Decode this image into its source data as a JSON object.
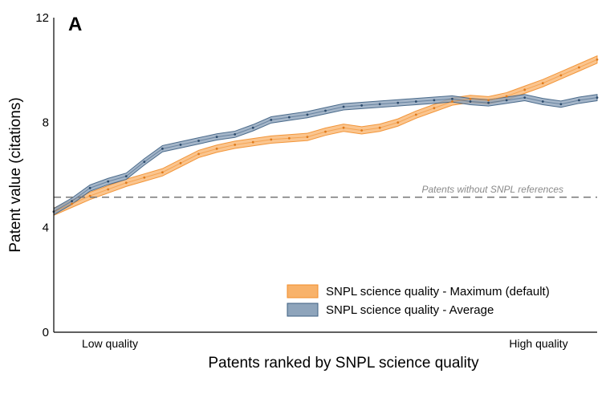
{
  "chart_data": {
    "type": "line",
    "panel_label": "A",
    "xlabel": "Patents ranked by SNPL science quality",
    "ylabel": "Patent value (citations)",
    "x_category_labels": [
      "Low quality",
      "High quality"
    ],
    "y_ticks": [
      "0",
      "4",
      "8",
      "12"
    ],
    "ylim": [
      0,
      12
    ],
    "grid": false,
    "legend_position": "bottom-right",
    "reference_line": {
      "label": "Patents without SNPL references",
      "value": 5.15,
      "color": "#777777"
    },
    "series": [
      {
        "name": "SNPL science quality - Maximum (default)",
        "color": "#f28e2b",
        "band_color": "#f8b26a",
        "band_halfwidth": 0.14,
        "x": [
          0,
          1,
          2,
          3,
          4,
          5,
          6,
          7,
          8,
          9,
          10,
          11,
          12,
          13,
          14,
          15,
          16,
          17,
          18,
          19,
          20,
          21,
          22,
          23,
          24,
          25,
          26,
          27,
          28,
          29,
          30
        ],
        "values": [
          4.6,
          4.9,
          5.2,
          5.45,
          5.7,
          5.9,
          6.1,
          6.45,
          6.8,
          7.0,
          7.15,
          7.25,
          7.35,
          7.4,
          7.45,
          7.65,
          7.8,
          7.7,
          7.8,
          8.0,
          8.3,
          8.55,
          8.8,
          8.9,
          8.85,
          9.0,
          9.25,
          9.5,
          9.8,
          10.1,
          10.4
        ]
      },
      {
        "name": "SNPL science quality - Average",
        "color": "#3d5f82",
        "band_color": "#8ea4bb",
        "band_halfwidth": 0.12,
        "x": [
          0,
          1,
          2,
          3,
          4,
          5,
          6,
          7,
          8,
          9,
          10,
          11,
          12,
          13,
          14,
          15,
          16,
          17,
          18,
          19,
          20,
          21,
          22,
          23,
          24,
          25,
          26,
          27,
          28,
          29,
          30
        ],
        "values": [
          4.6,
          5.0,
          5.5,
          5.75,
          5.95,
          6.5,
          7.0,
          7.15,
          7.3,
          7.45,
          7.55,
          7.8,
          8.1,
          8.2,
          8.3,
          8.45,
          8.6,
          8.65,
          8.7,
          8.75,
          8.8,
          8.85,
          8.9,
          8.8,
          8.75,
          8.85,
          8.95,
          8.8,
          8.7,
          8.85,
          8.95
        ]
      }
    ]
  }
}
